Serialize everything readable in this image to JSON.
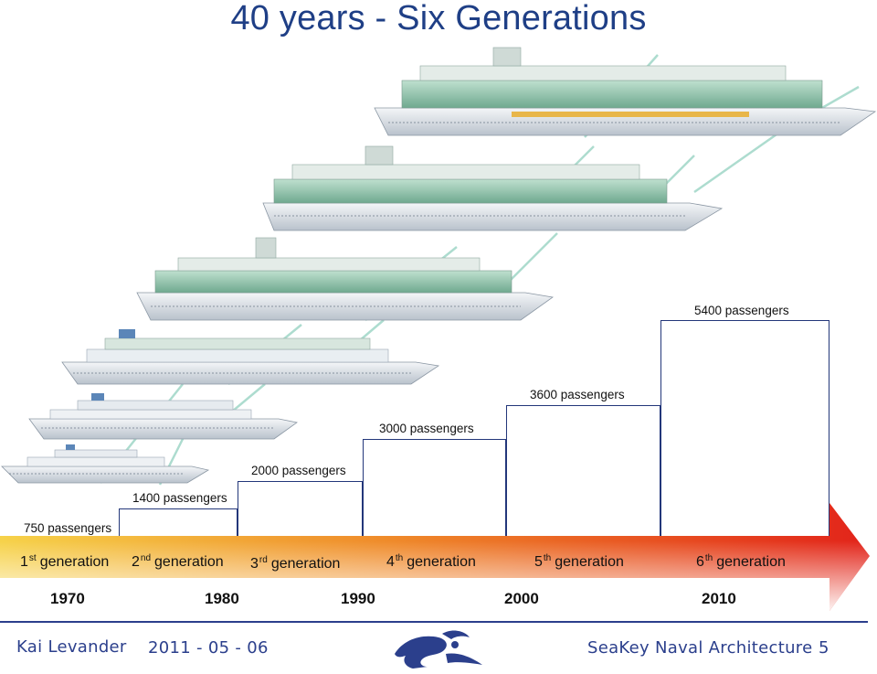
{
  "title": "40 years - Six Generations",
  "generations": [
    {
      "num": "1",
      "suffix": "st",
      "label": "generation",
      "passengers": "750 passengers"
    },
    {
      "num": "2",
      "suffix": "nd",
      "label": "generation",
      "passengers": "1400 passengers"
    },
    {
      "num": "3",
      "suffix": "rd",
      "label": "generation",
      "passengers": "2000 passengers"
    },
    {
      "num": "4",
      "suffix": "th",
      "label": "generation",
      "passengers": "3000 passengers"
    },
    {
      "num": "5",
      "suffix": "th",
      "label": "generation",
      "passengers": "3600 passengers"
    },
    {
      "num": "6",
      "suffix": "th",
      "label": "generation",
      "passengers": "5400 passengers"
    }
  ],
  "years": [
    "1970",
    "1980",
    "1990",
    "2000",
    "2010"
  ],
  "footer": {
    "author": "Kai Levander",
    "date": "2011 - 05 - 06",
    "company": "SeaKey Naval Architecture",
    "page": "5"
  },
  "colors": {
    "title": "#1f3f86",
    "step_border": "#23377a",
    "arrow_start": "#f6d24a",
    "arrow_mid": "#ef8a2a",
    "arrow_end": "#e2231a",
    "footer": "#2b3f8c"
  },
  "icons": [
    "cruise-ship-icon",
    "seakey-logo-icon"
  ]
}
